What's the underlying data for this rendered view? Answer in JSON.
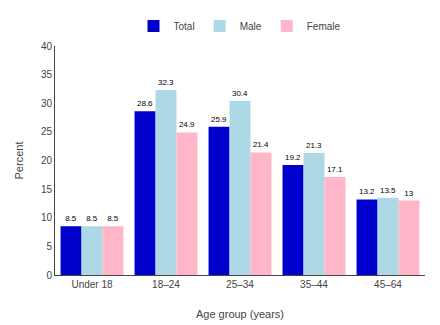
{
  "chart_data": {
    "type": "bar",
    "categories": [
      "Under 18",
      "18–24",
      "25–34",
      "35–44",
      "45–64"
    ],
    "series": [
      {
        "name": "Total",
        "color": "#0000CD",
        "values": [
          8.5,
          28.6,
          25.9,
          19.2,
          13.2
        ]
      },
      {
        "name": "Male",
        "color": "#ADD8E6",
        "values": [
          8.5,
          32.3,
          30.4,
          21.3,
          13.5
        ]
      },
      {
        "name": "Female",
        "color": "#FFB6C8",
        "values": [
          8.5,
          24.9,
          21.4,
          17.1,
          13.0
        ]
      }
    ],
    "xlabel": "Age group (years)",
    "ylabel": "Percent",
    "ylim": [
      0,
      40
    ],
    "yticks": [
      0,
      5,
      10,
      15,
      20,
      25,
      30,
      35,
      40
    ],
    "data_labels": true,
    "grid": false,
    "legend": "top"
  }
}
